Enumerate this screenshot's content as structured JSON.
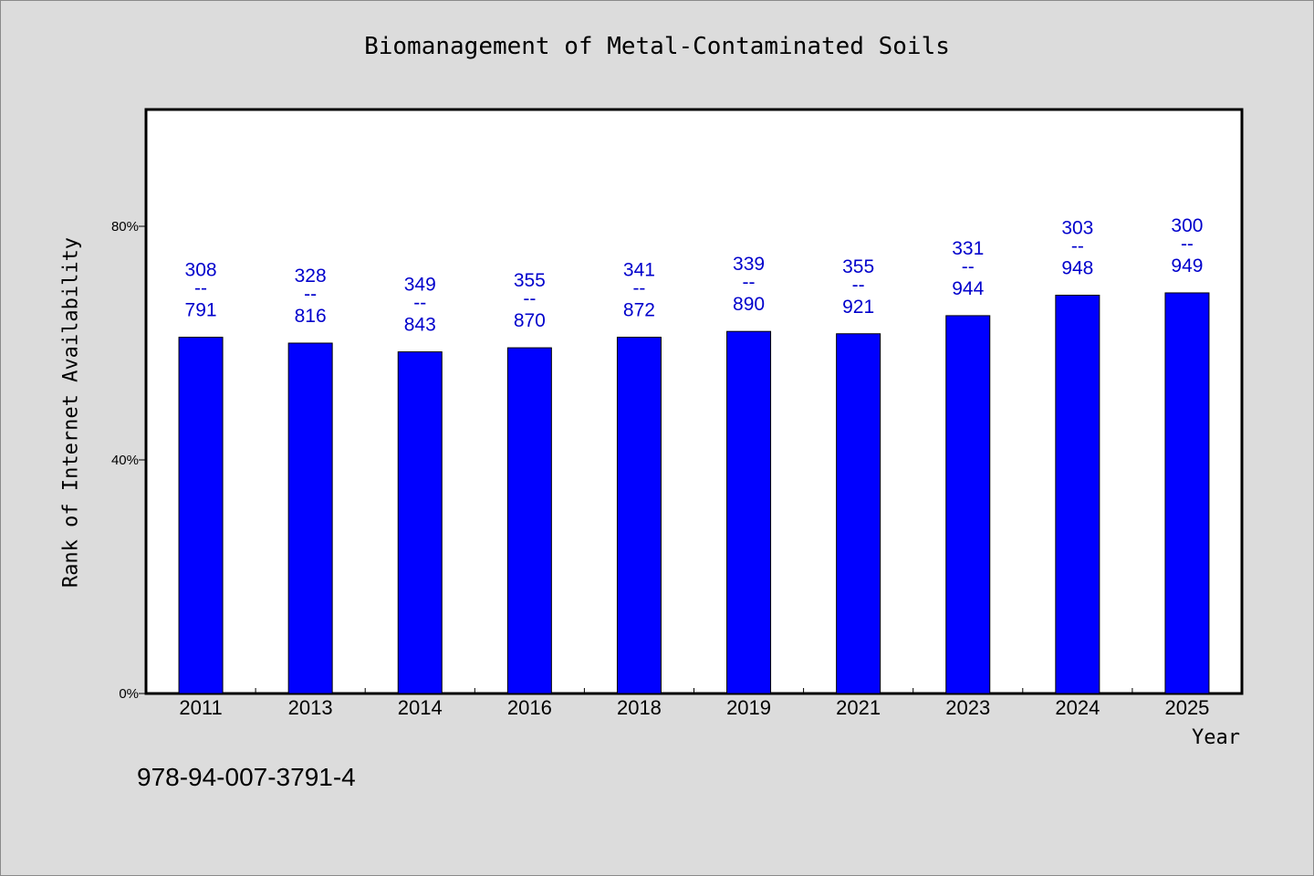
{
  "chart_data": {
    "type": "bar",
    "title": "Biomanagement of Metal-Contaminated Soils",
    "xlabel": "Year",
    "ylabel": "Rank of Internet Availability",
    "footer_text": "978-94-007-3791-4",
    "categories": [
      "2011",
      "2013",
      "2014",
      "2016",
      "2018",
      "2019",
      "2021",
      "2023",
      "2024",
      "2025"
    ],
    "values": [
      61,
      60,
      58.5,
      59.2,
      61,
      62,
      61.6,
      64.7,
      68.2,
      68.6
    ],
    "data_labels": [
      {
        "top": "308",
        "sep": "--",
        "bottom": "791"
      },
      {
        "top": "328",
        "sep": "--",
        "bottom": "816"
      },
      {
        "top": "349",
        "sep": "--",
        "bottom": "843"
      },
      {
        "top": "355",
        "sep": "--",
        "bottom": "870"
      },
      {
        "top": "341",
        "sep": "--",
        "bottom": "872"
      },
      {
        "top": "339",
        "sep": "--",
        "bottom": "890"
      },
      {
        "top": "355",
        "sep": "--",
        "bottom": "921"
      },
      {
        "top": "331",
        "sep": "--",
        "bottom": "944"
      },
      {
        "top": "303",
        "sep": "--",
        "bottom": "948"
      },
      {
        "top": "300",
        "sep": "--",
        "bottom": "949"
      }
    ],
    "yticks": [
      0,
      40,
      80
    ],
    "ytick_labels": [
      "0%",
      "40%",
      "80%"
    ],
    "ylim": [
      0,
      100
    ],
    "grid": false,
    "colors": {
      "bar": "#0000ff",
      "data_label": "#0000cc",
      "background": "#dcdcdc",
      "plot_background": "#ffffff"
    }
  }
}
